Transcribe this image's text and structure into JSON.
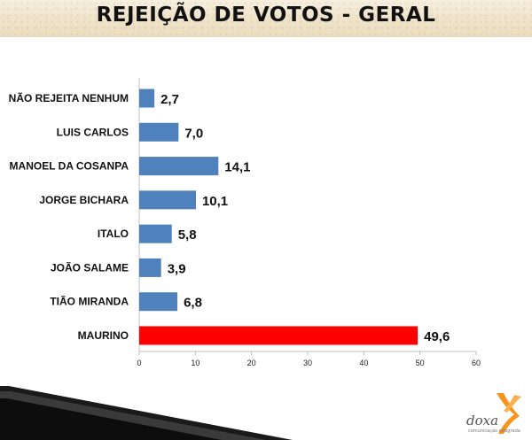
{
  "header": {
    "title": "REJEIÇÃO DE VOTOS - GERAL"
  },
  "branding": {
    "logo_text": "doxa",
    "logo_subtext": "comunicação integrada"
  },
  "colors": {
    "default_bar": "#4f81bd",
    "highlight_bar": "#ff0000",
    "logo_orange": "#f7941d"
  },
  "chart_data": {
    "type": "bar",
    "orientation": "horizontal",
    "title": "REJEIÇÃO DE VOTOS - GERAL",
    "categories": [
      "NÃO REJEITA NENHUM",
      "LUIS CARLOS",
      "MANOEL DA COSANPA",
      "JORGE BICHARA",
      "ITALO",
      "JOÃO SALAME",
      "TIÃO MIRANDA",
      "MAURINO"
    ],
    "values": [
      2.7,
      7.0,
      14.1,
      10.1,
      5.8,
      3.9,
      6.8,
      49.6
    ],
    "value_labels": [
      "2,7",
      "7,0",
      "14,1",
      "10,1",
      "5,8",
      "3,9",
      "6,8",
      "49,6"
    ],
    "bar_colors": [
      "#4f81bd",
      "#4f81bd",
      "#4f81bd",
      "#4f81bd",
      "#4f81bd",
      "#4f81bd",
      "#4f81bd",
      "#ff0000"
    ],
    "xlim": [
      0,
      60
    ],
    "xticks": [
      0,
      10,
      20,
      30,
      40,
      50,
      60
    ],
    "xlabel": "",
    "ylabel": "",
    "grid": false,
    "legend": "none"
  }
}
